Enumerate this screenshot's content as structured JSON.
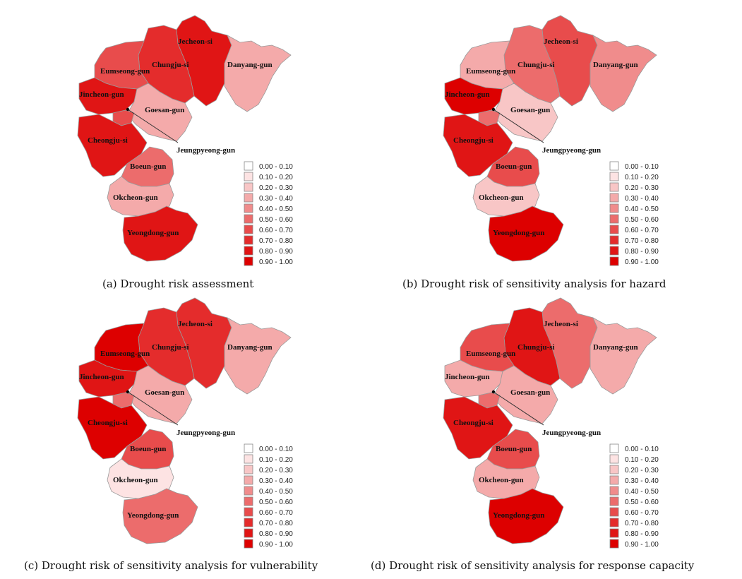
{
  "maps": [
    {
      "caption": "(a) Drought risk assessment",
      "classes": {
        "Jecheon-si": 8,
        "Danyang-gun": 3,
        "Chungju-si": 7,
        "Eumseong-gun": 6,
        "Jincheon-gun": 8,
        "Goesan-gun": 3,
        "Jeungpyeong-gun": 6,
        "Cheongju-si": 8,
        "Boeun-gun": 5,
        "Okcheon-gun": 3,
        "Yeongdong-gun": 8
      }
    },
    {
      "caption": "(b) Drought risk of sensitivity analysis for hazard",
      "classes": {
        "Jecheon-si": 6,
        "Danyang-gun": 4,
        "Chungju-si": 5,
        "Eumseong-gun": 3,
        "Jincheon-gun": 9,
        "Goesan-gun": 2,
        "Jeungpyeong-gun": 5,
        "Cheongju-si": 8,
        "Boeun-gun": 6,
        "Okcheon-gun": 2,
        "Yeongdong-gun": 9
      }
    },
    {
      "caption": "(c) Drought risk of sensitivity analysis for vulnerability",
      "classes": {
        "Jecheon-si": 7,
        "Danyang-gun": 3,
        "Chungju-si": 7,
        "Eumseong-gun": 9,
        "Jincheon-gun": 8,
        "Goesan-gun": 3,
        "Jeungpyeong-gun": 5,
        "Cheongju-si": 9,
        "Boeun-gun": 6,
        "Okcheon-gun": 1,
        "Yeongdong-gun": 5
      }
    },
    {
      "caption": "(d) Drought risk of sensitivity analysis for response capacity",
      "classes": {
        "Jecheon-si": 5,
        "Danyang-gun": 3,
        "Chungju-si": 8,
        "Eumseong-gun": 6,
        "Jincheon-gun": 3,
        "Goesan-gun": 3,
        "Jeungpyeong-gun": 5,
        "Cheongju-si": 8,
        "Boeun-gun": 6,
        "Okcheon-gun": 3,
        "Yeongdong-gun": 9
      }
    }
  ],
  "regions": [
    "Jecheon-si",
    "Danyang-gun",
    "Chungju-si",
    "Eumseong-gun",
    "Jincheon-gun",
    "Goesan-gun",
    "Jeungpyeong-gun",
    "Cheongju-si",
    "Boeun-gun",
    "Okcheon-gun",
    "Yeongdong-gun"
  ],
  "legend": {
    "labels": [
      "0.00 - 0.10",
      "0.10 - 0.20",
      "0.20 - 0.30",
      "0.30 - 0.40",
      "0.40 - 0.50",
      "0.50 - 0.60",
      "0.60 - 0.70",
      "0.70 - 0.80",
      "0.80 - 0.90",
      "0.90 - 1.00"
    ],
    "colors": [
      "#ffffff",
      "#fde3e3",
      "#f8c6c6",
      "#f4aaaa",
      "#f08c8c",
      "#ec6c6c",
      "#e84c4c",
      "#e42c2c",
      "#e01515",
      "#dd0000"
    ]
  }
}
